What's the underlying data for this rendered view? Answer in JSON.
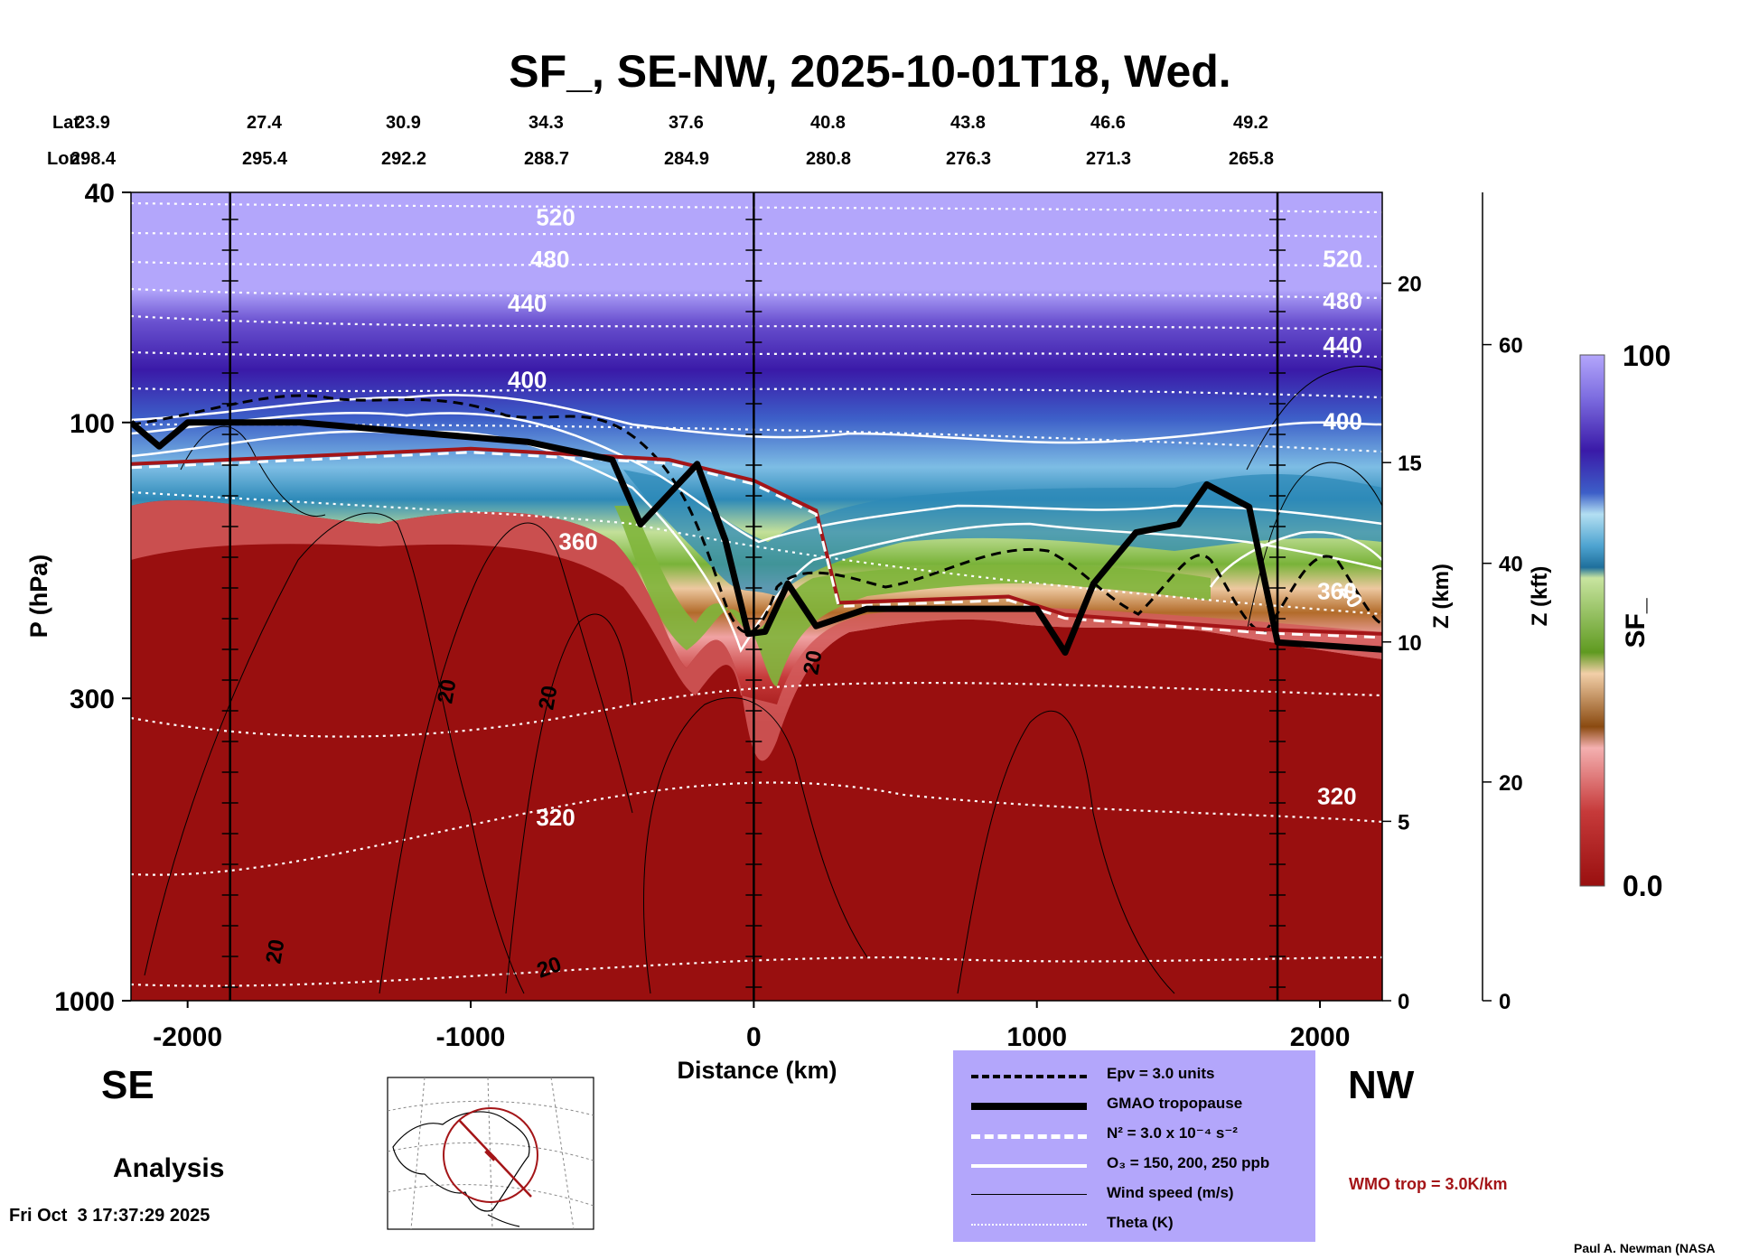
{
  "chart_data": {
    "type": "heatmap",
    "title": "SF_, SE-NW, 2025-10-01T18, Wed.",
    "xlabel": "Distance (km)",
    "ylabel": "P (hPa)",
    "z_km_label": "Z (km)",
    "z_kft_label": "Z (kft)",
    "colorbar_label": "SF_",
    "colorbar_range": [
      0.0,
      100
    ],
    "colorbar_min_label": "0.0",
    "colorbar_max_label": "100",
    "xlim": [
      -2200,
      2220
    ],
    "ylim_hpa": [
      1000,
      40
    ],
    "x_ticks": [
      -2000,
      -1000,
      0,
      1000,
      2000
    ],
    "x_tick_labels": [
      "-2000",
      "-1000",
      "0",
      "1000",
      "2000"
    ],
    "p_ticks": [
      40,
      100,
      300,
      1000
    ],
    "p_tick_labels": [
      "40",
      "100",
      "300",
      "1000"
    ],
    "z_km_ticks": [
      0,
      5,
      10,
      15,
      20
    ],
    "z_km_tick_labels": [
      "0",
      "5",
      "10",
      "15",
      "20"
    ],
    "z_kft_ticks": [
      0,
      20,
      40,
      60
    ],
    "z_kft_tick_labels": [
      "0",
      "20",
      "40",
      "60"
    ],
    "lat_label": "Lat:",
    "lon_label": "Lon:",
    "lat_values": [
      "23.9",
      "27.4",
      "30.9",
      "34.3",
      "37.6",
      "40.8",
      "43.8",
      "46.6",
      "49.2"
    ],
    "lon_values": [
      "298.4",
      "295.4",
      "292.2",
      "288.7",
      "284.9",
      "280.8",
      "276.3",
      "271.3",
      "265.8"
    ],
    "sounding_lines_km": [
      -1850,
      0,
      1850
    ],
    "theta_contours": [
      {
        "label": "520",
        "p_hpa": 44
      },
      {
        "label": "480",
        "p_hpa": 52
      },
      {
        "label": "440",
        "p_hpa": 62
      },
      {
        "label": "400",
        "p_hpa": 84
      },
      {
        "label": "360",
        "p_hpa": 160
      },
      {
        "label": "320",
        "p_hpa": 480
      }
    ],
    "tropopause_gmao": [
      {
        "x": -2200,
        "p": 100
      },
      {
        "x": -2100,
        "p": 110
      },
      {
        "x": -2000,
        "p": 100
      },
      {
        "x": -1600,
        "p": 100
      },
      {
        "x": -1200,
        "p": 104
      },
      {
        "x": -800,
        "p": 108
      },
      {
        "x": -500,
        "p": 116
      },
      {
        "x": -400,
        "p": 150
      },
      {
        "x": -200,
        "p": 118
      },
      {
        "x": -100,
        "p": 160
      },
      {
        "x": -20,
        "p": 232
      },
      {
        "x": 40,
        "p": 230
      },
      {
        "x": 120,
        "p": 190
      },
      {
        "x": 220,
        "p": 225
      },
      {
        "x": 400,
        "p": 210
      },
      {
        "x": 600,
        "p": 210
      },
      {
        "x": 1000,
        "p": 210
      },
      {
        "x": 1100,
        "p": 250
      },
      {
        "x": 1200,
        "p": 190
      },
      {
        "x": 1350,
        "p": 155
      },
      {
        "x": 1500,
        "p": 150
      },
      {
        "x": 1600,
        "p": 128
      },
      {
        "x": 1750,
        "p": 140
      },
      {
        "x": 1850,
        "p": 240
      },
      {
        "x": 2220,
        "p": 247
      }
    ],
    "wmo_tropopause": [
      {
        "x": -2200,
        "p": 118
      },
      {
        "x": -1000,
        "p": 111
      },
      {
        "x": -300,
        "p": 116
      },
      {
        "x": 0,
        "p": 126
      },
      {
        "x": 220,
        "p": 142
      },
      {
        "x": 300,
        "p": 205
      },
      {
        "x": 900,
        "p": 200
      },
      {
        "x": 1100,
        "p": 215
      },
      {
        "x": 1800,
        "p": 228
      },
      {
        "x": 2220,
        "p": 232
      }
    ],
    "legend": {
      "epv": "Epv = 3.0 units",
      "tropopause": "GMAO tropopause",
      "n2": "N² = 3.0 x 10⁻⁴ s⁻²",
      "o3": "O₃ = 150, 200, 250 ppb",
      "wind": "Wind speed (m/s)",
      "theta": "Theta (K)"
    },
    "wind_contour_label": "20"
  },
  "labels": {
    "left_direction": "SE",
    "right_direction": "NW",
    "product": "Analysis",
    "timestamp": "Fri Oct  3 17:37:29 2025",
    "credit": "Paul A. Newman (NASA",
    "wmo_note": "WMO trop = 3.0K/km"
  },
  "colors": {
    "background": "#ffffff",
    "legend_box": "#b3a6fb",
    "wmo_line": "#a41518",
    "troposphere": "#990f0f",
    "stratosphere_top": "#b3a6fb",
    "stratosphere_mid": "#3a1aa8"
  }
}
